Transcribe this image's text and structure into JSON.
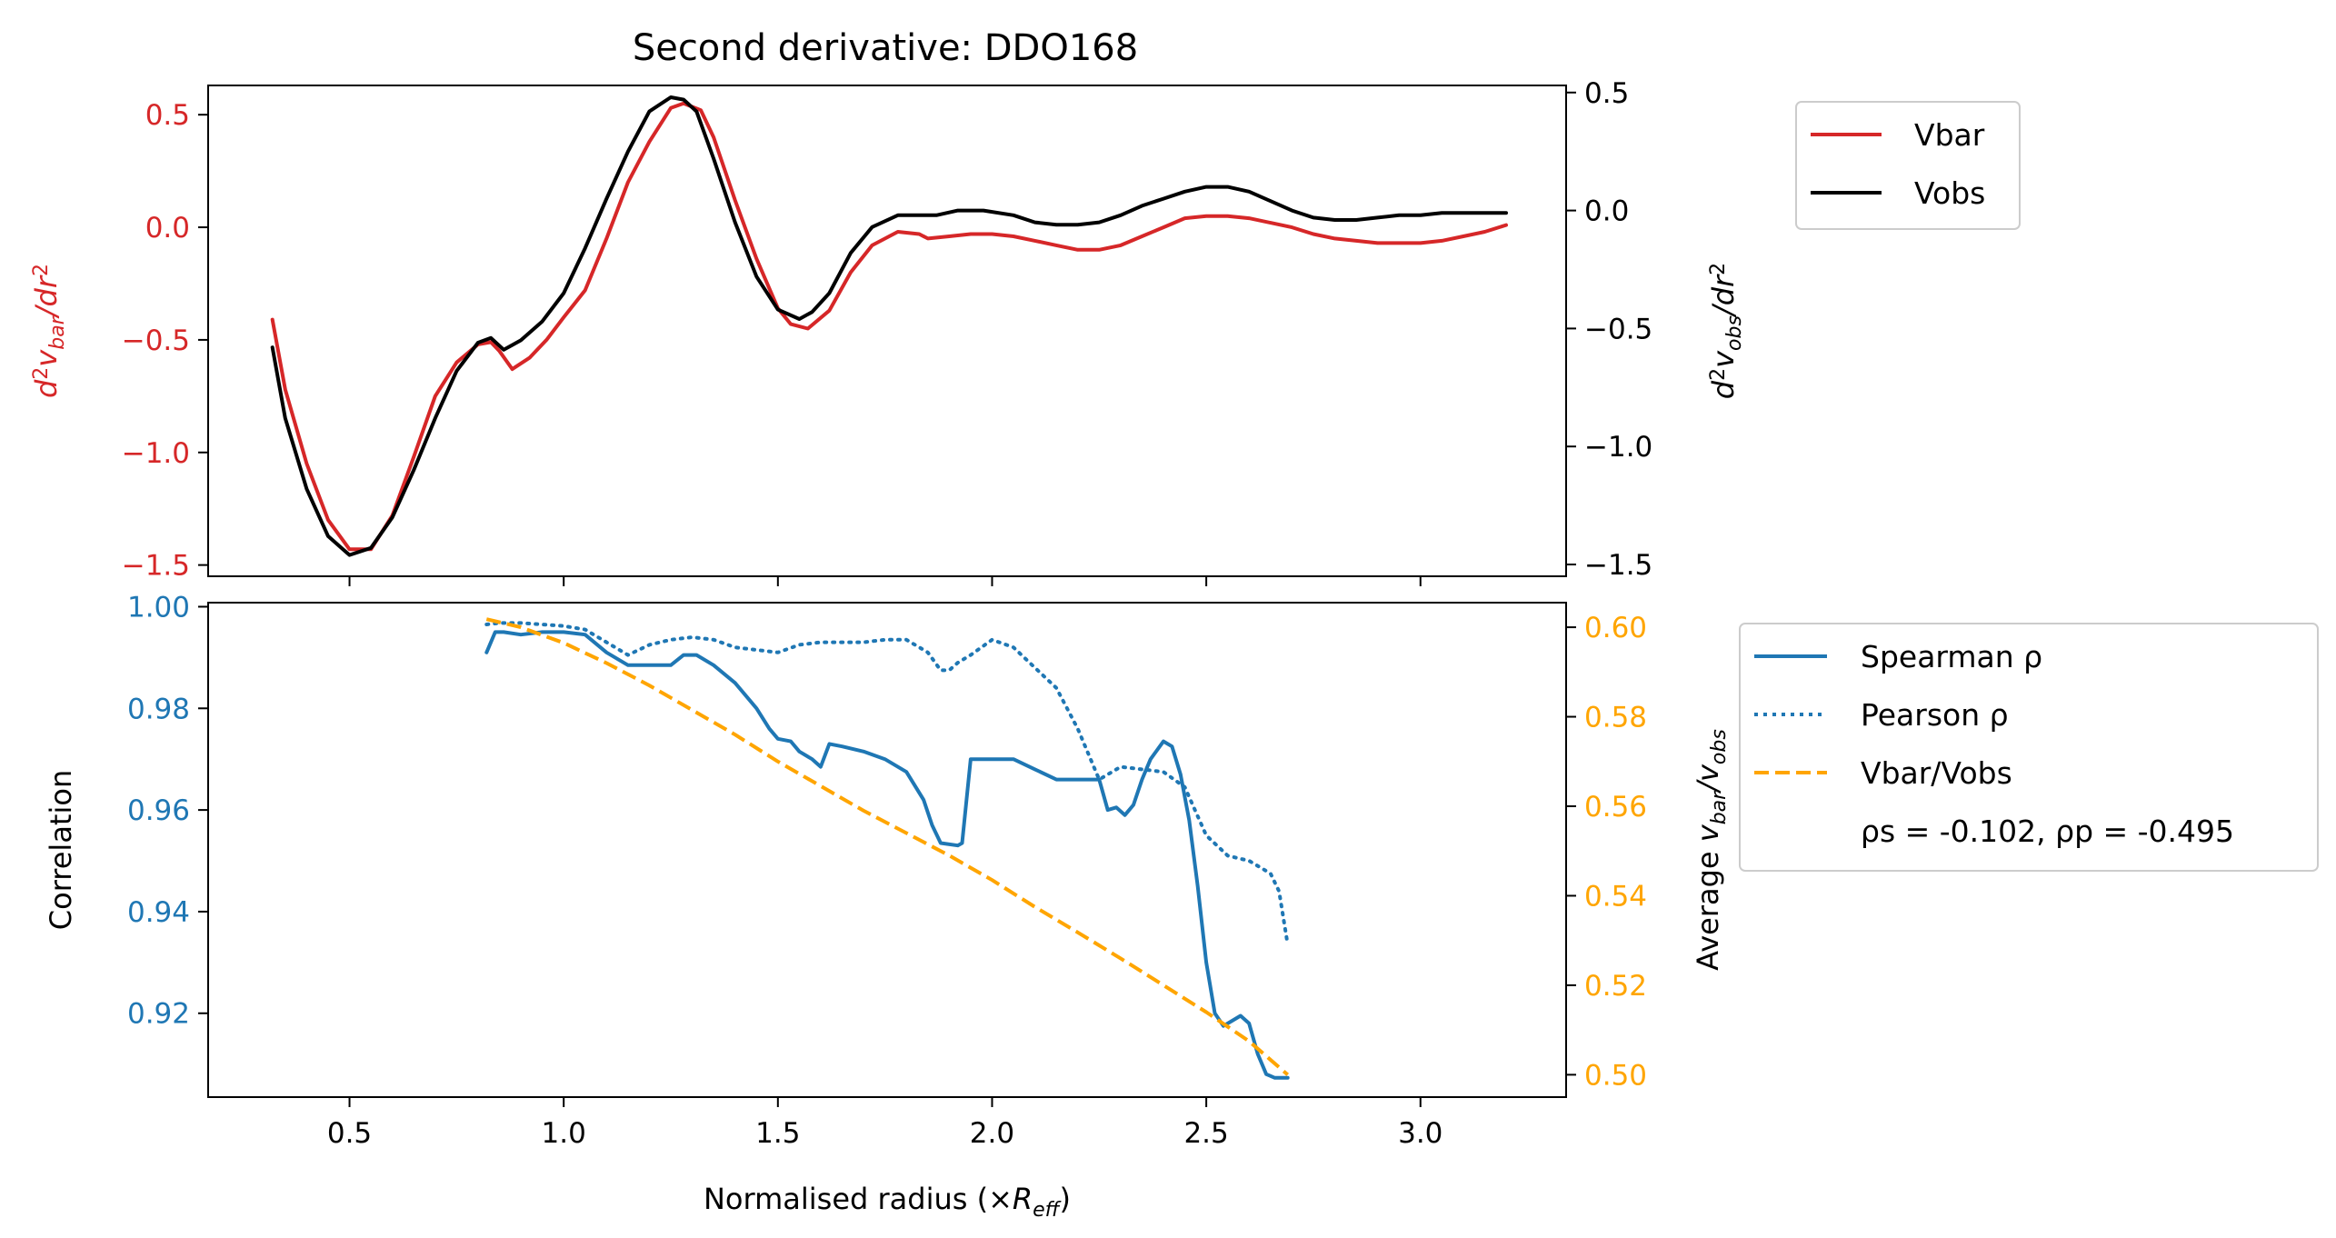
{
  "figure": {
    "title": "Second derivative: DDO168",
    "xlabel": "Normalised radius (×R_eff)"
  },
  "colors": {
    "vbar": "#d62728",
    "vobs": "#000000",
    "corr": "#1f77b4",
    "ratio": "#ffa500",
    "axes": "#000000",
    "legend_border": "#cccccc"
  },
  "legend_top": {
    "placement": "outside-right-top",
    "entries": [
      {
        "label": "Vbar",
        "style": "solid",
        "color_key": "vbar"
      },
      {
        "label": "Vobs",
        "style": "solid",
        "color_key": "vobs"
      }
    ]
  },
  "legend_bottom": {
    "placement": "outside-right",
    "entries": [
      {
        "label": "Spearman ρ",
        "style": "solid",
        "color_key": "corr"
      },
      {
        "label": "Pearson ρ",
        "style": "dotted",
        "color_key": "corr"
      },
      {
        "label": "Vbar/Vobs",
        "style": "dashed",
        "color_key": "ratio"
      }
    ],
    "stats_text": "ρs = -0.102, ρp = -0.495"
  },
  "chart_data": [
    {
      "type": "line",
      "panel": "top",
      "title": "Second derivative: DDO168",
      "xlim": [
        0.17,
        3.34
      ],
      "left_axis": {
        "label": "d²v_bar/dr²",
        "ylim": [
          -1.55,
          0.63
        ],
        "ticks": [
          0.5,
          0.0,
          -0.5,
          -1.0,
          -1.5
        ],
        "tick_labels": [
          "0.5",
          "0.0",
          "−0.5",
          "−1.0",
          "−1.5"
        ],
        "color_key": "vbar"
      },
      "right_axis": {
        "label": "d²v_obs/dr²",
        "ylim": [
          -1.55,
          0.53
        ],
        "ticks": [
          0.5,
          0.0,
          -0.5,
          -1.0,
          -1.5
        ],
        "tick_labels": [
          "0.5",
          "0.0",
          "−0.5",
          "−1.0",
          "−1.5"
        ],
        "color_key": "vobs"
      },
      "grid": false,
      "series": [
        {
          "name": "Vbar",
          "axis": "left",
          "color_key": "vbar",
          "x": [
            0.32,
            0.35,
            0.4,
            0.45,
            0.5,
            0.55,
            0.6,
            0.65,
            0.7,
            0.75,
            0.8,
            0.83,
            0.85,
            0.88,
            0.92,
            0.96,
            1.0,
            1.05,
            1.1,
            1.15,
            1.2,
            1.25,
            1.28,
            1.32,
            1.35,
            1.4,
            1.45,
            1.5,
            1.53,
            1.57,
            1.62,
            1.67,
            1.72,
            1.78,
            1.83,
            1.85,
            1.9,
            1.95,
            2.0,
            2.05,
            2.1,
            2.15,
            2.2,
            2.25,
            2.3,
            2.35,
            2.4,
            2.45,
            2.5,
            2.55,
            2.6,
            2.65,
            2.7,
            2.75,
            2.8,
            2.85,
            2.9,
            2.95,
            3.0,
            3.05,
            3.1,
            3.15,
            3.2
          ],
          "y": [
            -0.41,
            -0.72,
            -1.05,
            -1.3,
            -1.43,
            -1.43,
            -1.28,
            -1.02,
            -0.75,
            -0.6,
            -0.52,
            -0.51,
            -0.55,
            -0.63,
            -0.58,
            -0.5,
            -0.4,
            -0.28,
            -0.05,
            0.2,
            0.38,
            0.53,
            0.55,
            0.52,
            0.4,
            0.12,
            -0.14,
            -0.36,
            -0.43,
            -0.45,
            -0.37,
            -0.2,
            -0.08,
            -0.02,
            -0.03,
            -0.05,
            -0.04,
            -0.03,
            -0.03,
            -0.04,
            -0.06,
            -0.08,
            -0.1,
            -0.1,
            -0.08,
            -0.04,
            0.0,
            0.04,
            0.05,
            0.05,
            0.04,
            0.02,
            0.0,
            -0.03,
            -0.05,
            -0.06,
            -0.07,
            -0.07,
            -0.07,
            -0.06,
            -0.04,
            -0.02,
            0.01
          ]
        },
        {
          "name": "Vobs",
          "axis": "right",
          "color_key": "vobs",
          "x": [
            0.32,
            0.35,
            0.4,
            0.45,
            0.5,
            0.55,
            0.6,
            0.65,
            0.7,
            0.75,
            0.8,
            0.83,
            0.86,
            0.9,
            0.95,
            1.0,
            1.05,
            1.1,
            1.15,
            1.2,
            1.25,
            1.28,
            1.31,
            1.35,
            1.4,
            1.45,
            1.5,
            1.55,
            1.58,
            1.62,
            1.67,
            1.72,
            1.78,
            1.83,
            1.87,
            1.92,
            1.98,
            2.05,
            2.1,
            2.15,
            2.2,
            2.25,
            2.3,
            2.35,
            2.4,
            2.45,
            2.5,
            2.55,
            2.6,
            2.65,
            2.7,
            2.75,
            2.8,
            2.85,
            2.9,
            2.95,
            3.0,
            3.05,
            3.1,
            3.15,
            3.2
          ],
          "y": [
            -0.58,
            -0.88,
            -1.18,
            -1.38,
            -1.46,
            -1.43,
            -1.3,
            -1.1,
            -0.88,
            -0.68,
            -0.56,
            -0.54,
            -0.59,
            -0.55,
            -0.47,
            -0.35,
            -0.16,
            0.05,
            0.25,
            0.42,
            0.48,
            0.47,
            0.42,
            0.22,
            -0.05,
            -0.28,
            -0.42,
            -0.46,
            -0.43,
            -0.35,
            -0.18,
            -0.07,
            -0.02,
            -0.02,
            -0.02,
            0.0,
            0.0,
            -0.02,
            -0.05,
            -0.06,
            -0.06,
            -0.05,
            -0.02,
            0.02,
            0.05,
            0.08,
            0.1,
            0.1,
            0.08,
            0.04,
            0.0,
            -0.03,
            -0.04,
            -0.04,
            -0.03,
            -0.02,
            -0.02,
            -0.01,
            -0.01,
            -0.01,
            -0.01
          ]
        }
      ]
    },
    {
      "type": "line",
      "panel": "bottom",
      "xlabel": "Normalised radius (×R_eff)",
      "xlim": [
        0.17,
        3.34
      ],
      "x_ticks": [
        0.5,
        1.0,
        1.5,
        2.0,
        2.5,
        3.0
      ],
      "x_tick_labels": [
        "0.5",
        "1.0",
        "1.5",
        "2.0",
        "2.5",
        "3.0"
      ],
      "left_axis": {
        "label": "Correlation",
        "ylim": [
          0.9035,
          1.0008
        ],
        "ticks": [
          1.0,
          0.98,
          0.96,
          0.94,
          0.92
        ],
        "tick_labels": [
          "1.00",
          "0.98",
          "0.96",
          "0.94",
          "0.92"
        ],
        "color_key": "corr"
      },
      "right_axis": {
        "label": "Average v_bar/v_obs",
        "ylim": [
          0.495,
          0.6055
        ],
        "ticks": [
          0.6,
          0.58,
          0.56,
          0.54,
          0.52,
          0.5
        ],
        "tick_labels": [
          "0.60",
          "0.58",
          "0.56",
          "0.54",
          "0.52",
          "0.50"
        ],
        "color_key": "ratio"
      },
      "grid": false,
      "series": [
        {
          "name": "Spearman ρ",
          "axis": "left",
          "style": "solid",
          "color_key": "corr",
          "x": [
            0.82,
            0.84,
            0.86,
            0.9,
            0.95,
            1.0,
            1.05,
            1.1,
            1.15,
            1.2,
            1.25,
            1.28,
            1.31,
            1.35,
            1.4,
            1.45,
            1.48,
            1.5,
            1.53,
            1.55,
            1.58,
            1.6,
            1.62,
            1.65,
            1.7,
            1.75,
            1.8,
            1.84,
            1.86,
            1.88,
            1.92,
            1.93,
            1.95,
            2.0,
            2.05,
            2.1,
            2.15,
            2.2,
            2.24,
            2.25,
            2.27,
            2.29,
            2.31,
            2.33,
            2.35,
            2.37,
            2.4,
            2.42,
            2.44,
            2.46,
            2.48,
            2.5,
            2.52,
            2.54,
            2.56,
            2.58,
            2.6,
            2.62,
            2.64,
            2.66,
            2.69
          ],
          "y": [
            0.991,
            0.995,
            0.995,
            0.9945,
            0.995,
            0.995,
            0.9945,
            0.991,
            0.9885,
            0.9885,
            0.9885,
            0.9905,
            0.9905,
            0.9885,
            0.985,
            0.98,
            0.976,
            0.974,
            0.9735,
            0.9715,
            0.97,
            0.9685,
            0.973,
            0.9725,
            0.9715,
            0.97,
            0.9675,
            0.962,
            0.957,
            0.9535,
            0.953,
            0.9535,
            0.97,
            0.97,
            0.97,
            0.968,
            0.966,
            0.966,
            0.966,
            0.966,
            0.96,
            0.9605,
            0.959,
            0.961,
            0.966,
            0.97,
            0.9735,
            0.9725,
            0.967,
            0.958,
            0.945,
            0.93,
            0.92,
            0.9175,
            0.9185,
            0.9195,
            0.918,
            0.912,
            0.908,
            0.9073,
            0.9073
          ]
        },
        {
          "name": "Pearson ρ",
          "axis": "left",
          "style": "dotted",
          "color_key": "corr",
          "x": [
            0.82,
            0.85,
            0.9,
            0.95,
            1.0,
            1.05,
            1.1,
            1.15,
            1.2,
            1.25,
            1.3,
            1.35,
            1.4,
            1.45,
            1.5,
            1.55,
            1.6,
            1.65,
            1.7,
            1.75,
            1.8,
            1.85,
            1.88,
            1.9,
            1.92,
            1.95,
            2.0,
            2.05,
            2.1,
            2.15,
            2.2,
            2.25,
            2.3,
            2.35,
            2.4,
            2.45,
            2.5,
            2.55,
            2.6,
            2.65,
            2.67,
            2.69
          ],
          "y": [
            0.9965,
            0.9968,
            0.9968,
            0.9965,
            0.9962,
            0.9955,
            0.993,
            0.9905,
            0.9925,
            0.9935,
            0.994,
            0.9935,
            0.992,
            0.9915,
            0.991,
            0.9925,
            0.993,
            0.993,
            0.993,
            0.9935,
            0.9935,
            0.991,
            0.9875,
            0.9875,
            0.989,
            0.9905,
            0.9935,
            0.992,
            0.988,
            0.984,
            0.976,
            0.966,
            0.9685,
            0.968,
            0.9675,
            0.9645,
            0.955,
            0.951,
            0.95,
            0.9475,
            0.944,
            0.9335
          ]
        },
        {
          "name": "Vbar/Vobs",
          "axis": "right",
          "style": "dashed",
          "color_key": "ratio",
          "x": [
            0.82,
            0.9,
            1.0,
            1.1,
            1.2,
            1.3,
            1.4,
            1.5,
            1.6,
            1.7,
            1.8,
            1.9,
            2.0,
            2.1,
            2.2,
            2.3,
            2.4,
            2.5,
            2.6,
            2.69
          ],
          "y": [
            0.6018,
            0.6,
            0.5965,
            0.592,
            0.587,
            0.5815,
            0.576,
            0.57,
            0.5645,
            0.559,
            0.554,
            0.549,
            0.5435,
            0.5375,
            0.5318,
            0.526,
            0.52,
            0.514,
            0.5075,
            0.5
          ]
        }
      ]
    }
  ]
}
